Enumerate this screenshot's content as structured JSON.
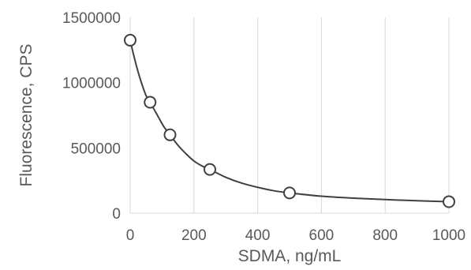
{
  "chart_data": {
    "type": "scatter",
    "title": "",
    "xlabel": "SDMA, ng/mL",
    "ylabel": "Fluorescence, CPS",
    "xlim": [
      0,
      1000
    ],
    "ylim": [
      0,
      1500000
    ],
    "x_ticks": [
      0,
      200,
      400,
      600,
      800,
      1000
    ],
    "y_ticks": [
      0,
      500000,
      1000000,
      1500000
    ],
    "x_tick_labels": [
      "0",
      "200",
      "400",
      "600",
      "800",
      "1000"
    ],
    "y_tick_labels": [
      "0",
      "500000",
      "1000000",
      "1500000"
    ],
    "grid": "vertical",
    "legend": "none",
    "series": [
      {
        "marker": "open-circle",
        "x": [
          0,
          62.5,
          125,
          250,
          500,
          1000
        ],
        "y": [
          1325000,
          850000,
          600000,
          335000,
          155000,
          88000
        ]
      }
    ],
    "fit_curve": {
      "style": "smooth-line",
      "x": [
        0,
        10,
        20,
        30,
        40,
        50,
        62.5,
        75,
        90,
        105,
        125,
        150,
        175,
        200,
        225,
        250,
        300,
        350,
        400,
        450,
        500,
        600,
        700,
        800,
        900,
        1000
      ],
      "y": [
        1325000,
        1220000,
        1125000,
        1040000,
        965000,
        900000,
        850000,
        795000,
        730000,
        665000,
        600000,
        520000,
        455000,
        400000,
        362000,
        335000,
        275000,
        230000,
        198000,
        172000,
        155000,
        130000,
        115000,
        104000,
        95000,
        88000
      ]
    },
    "colors": {
      "line": "#404040",
      "marker_stroke": "#404040",
      "marker_fill": "#ffffff",
      "grid": "#d9d9d9",
      "axis": "#d9d9d9",
      "text": "#595959"
    }
  }
}
